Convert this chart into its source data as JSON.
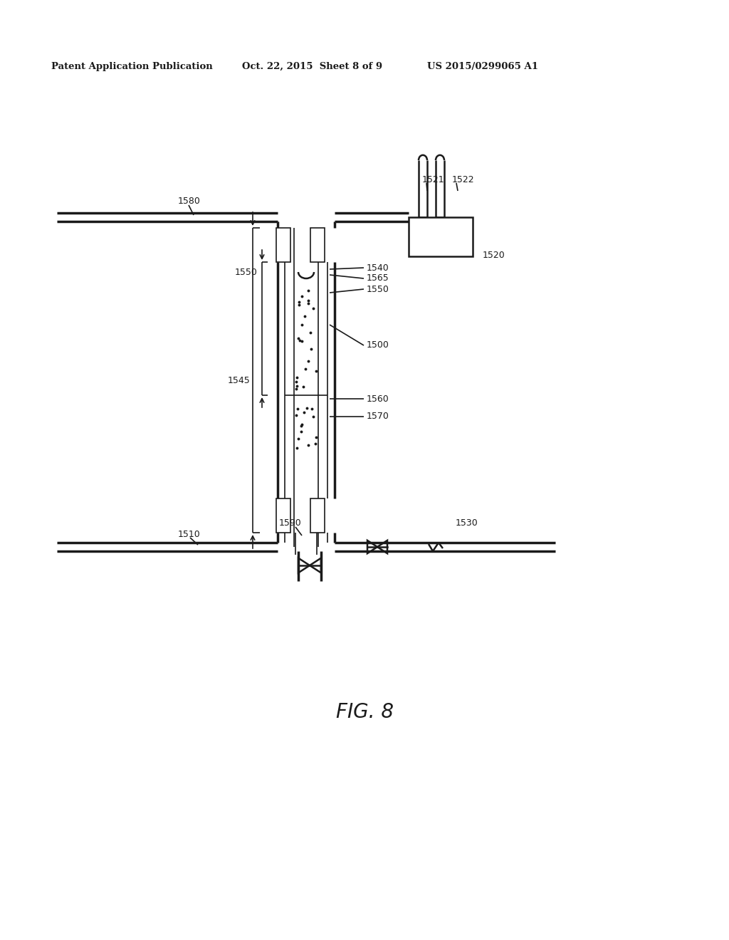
{
  "bg_color": "#ffffff",
  "line_color": "#1a1a1a",
  "header_text1": "Patent Application Publication",
  "header_text2": "Oct. 22, 2015  Sheet 8 of 9",
  "header_text3": "US 2015/0299065 A1",
  "fig_label": "FIG. 8"
}
